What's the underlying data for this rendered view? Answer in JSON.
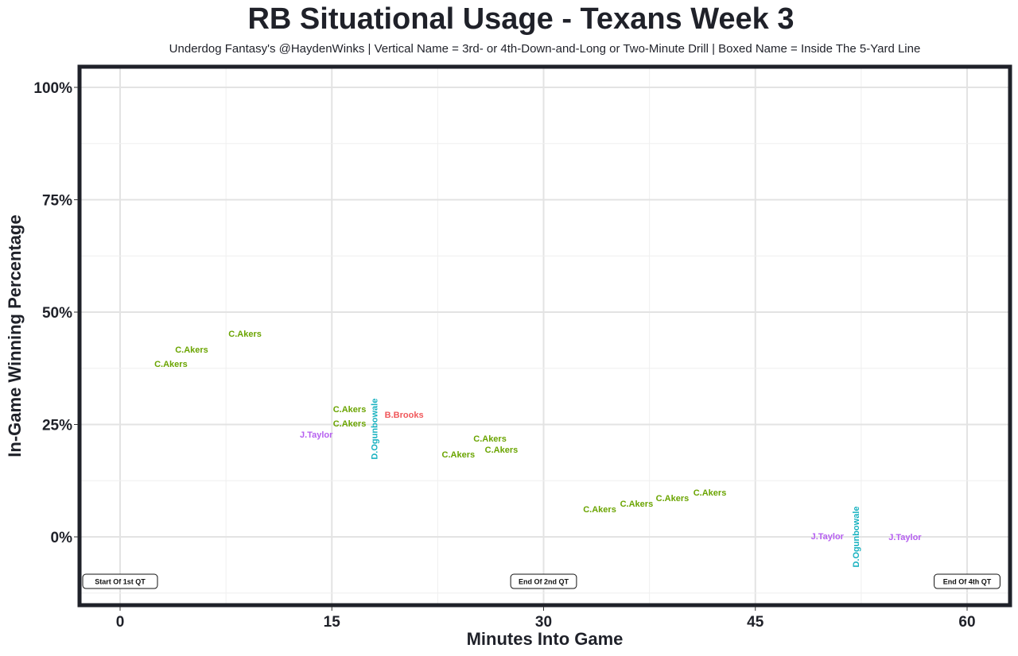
{
  "chart_data": {
    "type": "scatter",
    "title": "RB Situational Usage - Texans Week 3",
    "subtitle": "Underdog Fantasy's @HaydenWinks | Vertical Name = 3rd- or 4th-Down-and-Long or Two-Minute Drill | Boxed Name = Inside The 5-Yard Line",
    "xlabel": "Minutes Into Game",
    "ylabel": "In-Game Winning Percentage",
    "xlim": [
      -2.9,
      62.1
    ],
    "ylim": [
      -15,
      103
    ],
    "x_ticks": [
      {
        "v": 0,
        "label": "0"
      },
      {
        "v": 15,
        "label": "15"
      },
      {
        "v": 30,
        "label": "30"
      },
      {
        "v": 45,
        "label": "45"
      },
      {
        "v": 60,
        "label": "60"
      }
    ],
    "y_ticks": [
      {
        "v": 0,
        "label": "0%"
      },
      {
        "v": 25,
        "label": "25%"
      },
      {
        "v": 50,
        "label": "50%"
      },
      {
        "v": 75,
        "label": "75%"
      },
      {
        "v": 100,
        "label": "100%"
      }
    ],
    "grid": true,
    "colors": {
      "C.Akers": "#6aa400",
      "B.Brooks": "#f0575a",
      "D.Ogunbowale": "#18b2c0",
      "J.Taylor": "#b660f0"
    },
    "points": [
      {
        "name": "C.Akers",
        "x": 8.85,
        "y": 45.2,
        "vertical": false
      },
      {
        "name": "C.Akers",
        "x": 5.07,
        "y": 41.7,
        "vertical": false
      },
      {
        "name": "C.Akers",
        "x": 3.6,
        "y": 38.5,
        "vertical": false
      },
      {
        "name": "C.Akers",
        "x": 17.1,
        "y": 26.3,
        "vertical": false
      },
      {
        "name": "C.Akers",
        "x": 17.1,
        "y": 25.1,
        "vertical": false
      },
      {
        "name": "B.Brooks",
        "x": 19.5,
        "y": 27.2,
        "vertical": false
      },
      {
        "name": "D.Ogunbowale",
        "x": 18.0,
        "y": 24.0,
        "vertical": true
      },
      {
        "name": "J.Taylor",
        "x": 13.9,
        "y": 22.8,
        "vertical": false
      },
      {
        "name": "C.Akers",
        "x": 26.2,
        "y": 21.9,
        "vertical": false
      },
      {
        "name": "C.Akers",
        "x": 26.9,
        "y": 20.1,
        "vertical": false
      },
      {
        "name": "C.Akers",
        "x": 24.3,
        "y": 18.9,
        "vertical": false
      },
      {
        "name": "C.Akers",
        "x": 41.1,
        "y": 9.5,
        "vertical": false
      },
      {
        "name": "C.Akers",
        "x": 38.9,
        "y": 8.7,
        "vertical": false
      },
      {
        "name": "C.Akers",
        "x": 37.6,
        "y": 7.4,
        "vertical": false
      },
      {
        "name": "C.Akers",
        "x": 35.1,
        "y": 6.4,
        "vertical": false
      },
      {
        "name": "J.Taylor",
        "x": 50.1,
        "y": 0.2,
        "vertical": false
      },
      {
        "name": "J.Taylor",
        "x": 55.6,
        "y": 0.0,
        "vertical": false
      },
      {
        "name": "D.Ogunbowale",
        "x": 52.1,
        "y": 0.0,
        "vertical": true
      }
    ],
    "annotations": [
      {
        "label": "Start Of 1st QT",
        "x": 0,
        "y": -9.9
      },
      {
        "label": "End Of 2nd QT",
        "x": 30,
        "y": -9.9
      },
      {
        "label": "End Of 4th QT",
        "x": 60,
        "y": -9.9
      }
    ]
  }
}
